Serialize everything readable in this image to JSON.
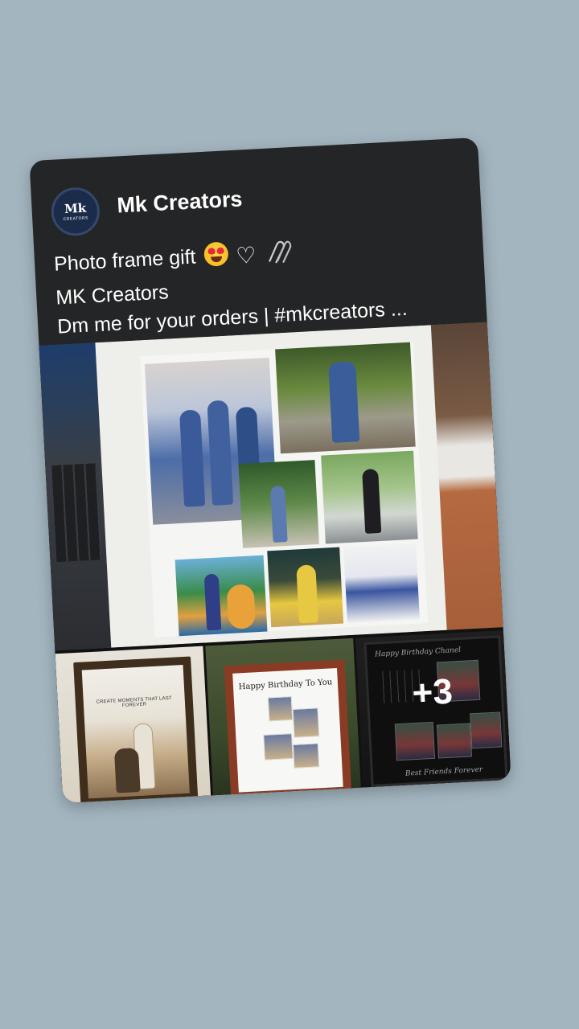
{
  "post": {
    "avatar_text": "Mk",
    "avatar_subtext": "CREATORS",
    "page_name": "Mk Creators",
    "caption_line1": "Photo frame gift",
    "caption_line2": "MK Creators",
    "caption_line3": "Dm me for your orders | #mkcreators ...",
    "emojis": [
      "heart-eyes-emoji",
      "white-heart-emoji",
      "paperclips-emoji"
    ]
  },
  "media": {
    "thumb1_text": "CREATE MOMENTS THAT LAST FOREVER",
    "thumb2_text": "Happy Birthday To You",
    "thumb3_title": "Happy Birthday Chanel",
    "thumb3_footer": "Best Friends Forever",
    "more_count": "+3"
  },
  "colors": {
    "background": "#a3b5bf",
    "card": "#242526",
    "text": "#ffffff"
  }
}
